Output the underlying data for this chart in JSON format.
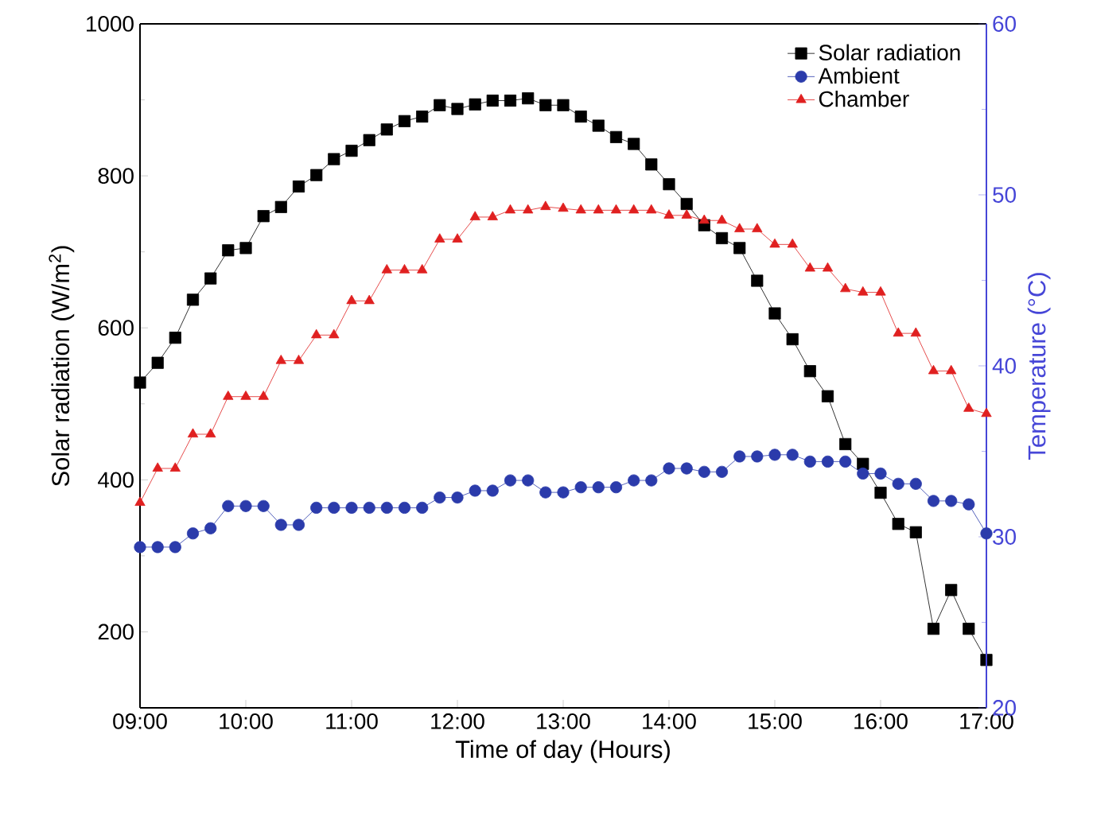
{
  "chart_data": {
    "type": "line",
    "xlabel": "Time of day (Hours)",
    "ylabel": "Solar radiation (W/m$^{2}$)",
    "y2label": "Temperature (°C)",
    "x": [
      9,
      9.167,
      9.333,
      9.5,
      9.667,
      9.833,
      10,
      10.167,
      10.333,
      10.5,
      10.667,
      10.833,
      11,
      11.167,
      11.333,
      11.5,
      11.667,
      11.833,
      12,
      12.167,
      12.333,
      12.5,
      12.667,
      12.833,
      13,
      13.167,
      13.333,
      13.5,
      13.667,
      13.833,
      14,
      14.167,
      14.333,
      14.5,
      14.667,
      14.833,
      15,
      15.167,
      15.333,
      15.5,
      15.667,
      15.833,
      16,
      16.167,
      16.333,
      16.5,
      16.667,
      16.833,
      17
    ],
    "xlim": [
      9,
      17
    ],
    "xticks": [
      {
        "value": 9,
        "label": "09:00"
      },
      {
        "value": 10,
        "label": "10:00"
      },
      {
        "value": 11,
        "label": "11:00"
      },
      {
        "value": 12,
        "label": "12:00"
      },
      {
        "value": 13,
        "label": "13:00"
      },
      {
        "value": 14,
        "label": "14:00"
      },
      {
        "value": 15,
        "label": "15:00"
      },
      {
        "value": 16,
        "label": "16:00"
      },
      {
        "value": 17,
        "label": "17:00"
      }
    ],
    "ylim": [
      100,
      1000
    ],
    "yticks": [
      200,
      400,
      600,
      800,
      1000
    ],
    "y2lim": [
      20,
      60
    ],
    "y2ticks": [
      20,
      30,
      40,
      50,
      60
    ],
    "legend": "top right",
    "line_style": "solid",
    "series": [
      {
        "name": "Solar radiation",
        "color": "#000000",
        "marker": "square",
        "values": [
          528,
          554,
          587,
          637,
          665,
          702,
          705,
          747,
          759,
          786,
          801,
          822,
          833,
          847,
          861,
          872,
          878,
          893,
          888,
          894,
          899,
          899,
          902,
          893,
          893,
          878,
          866,
          851,
          842,
          815,
          789,
          763,
          735,
          718,
          705,
          662,
          619,
          585,
          543,
          510,
          447,
          421,
          383,
          342,
          331,
          204,
          255,
          204,
          163
        ]
      },
      {
        "name": "Ambient",
        "color": "#2b3bab",
        "marker": "circle",
        "axis": "y2",
        "values": [
          29.4,
          29.4,
          29.4,
          30.2,
          30.5,
          31.8,
          31.8,
          31.8,
          30.7,
          30.7,
          31.7,
          31.7,
          31.7,
          31.7,
          31.7,
          31.7,
          31.7,
          32.3,
          32.3,
          32.7,
          32.7,
          33.3,
          33.3,
          32.6,
          32.6,
          32.9,
          32.9,
          32.9,
          33.3,
          33.3,
          34.0,
          34.0,
          33.8,
          33.8,
          34.7,
          34.7,
          34.8,
          34.8,
          34.4,
          34.4,
          34.4,
          33.7,
          33.7,
          33.1,
          33.1,
          32.1,
          32.1,
          31.9,
          30.2
        ]
      },
      {
        "name": "Chamber",
        "color": "#e02020",
        "marker": "triangle",
        "axis": "y2",
        "values": [
          32.0,
          34.0,
          34.0,
          36.0,
          36.0,
          38.2,
          38.2,
          38.2,
          40.3,
          40.3,
          41.8,
          41.8,
          43.8,
          43.8,
          45.6,
          45.6,
          45.6,
          47.4,
          47.4,
          48.7,
          48.7,
          49.1,
          49.1,
          49.3,
          49.2,
          49.1,
          49.1,
          49.1,
          49.1,
          49.1,
          48.8,
          48.8,
          48.5,
          48.5,
          48.0,
          48.0,
          47.1,
          47.1,
          45.7,
          45.7,
          44.5,
          44.3,
          44.3,
          41.9,
          41.9,
          39.7,
          39.7,
          37.5,
          37.2
        ]
      }
    ]
  }
}
